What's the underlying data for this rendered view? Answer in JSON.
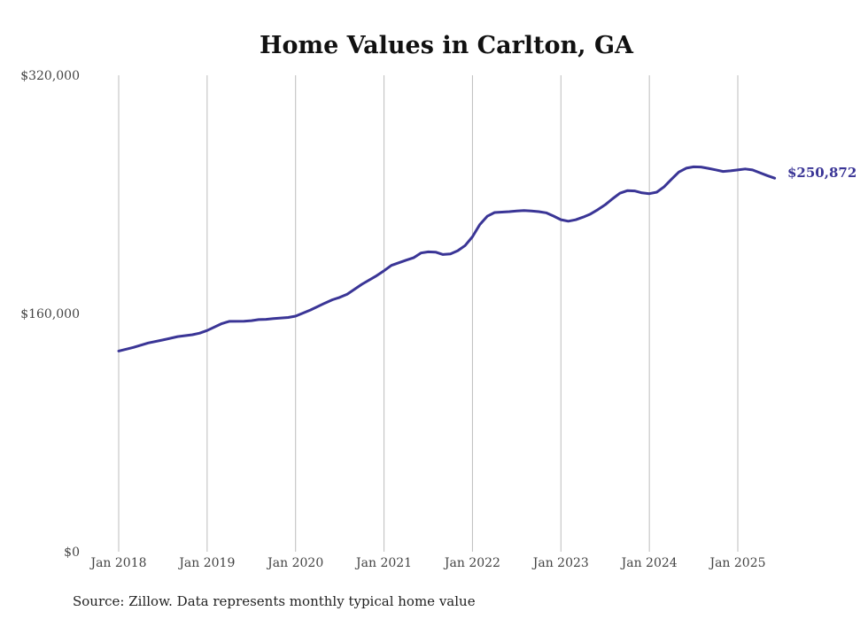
{
  "chart_data": {
    "type": "line",
    "title": "Home Values in Carlton, GA",
    "source_note": "Source: Zillow. Data represents monthly typical home value",
    "ylim": [
      0,
      320000
    ],
    "y_ticks": [
      {
        "value": 320000,
        "label": "$320,000"
      },
      {
        "value": 160000,
        "label": "$160,000"
      },
      {
        "value": 0,
        "label": "$0"
      }
    ],
    "x_ticks": [
      {
        "value": 2018,
        "label": "Jan 2018"
      },
      {
        "value": 2019,
        "label": "Jan 2019"
      },
      {
        "value": 2020,
        "label": "Jan 2020"
      },
      {
        "value": 2021,
        "label": "Jan 2021"
      },
      {
        "value": 2022,
        "label": "Jan 2022"
      },
      {
        "value": 2023,
        "label": "Jan 2023"
      },
      {
        "value": 2024,
        "label": "Jan 2024"
      },
      {
        "value": 2025,
        "label": "Jan 2025"
      }
    ],
    "xlim": [
      2018,
      2025.4167
    ],
    "grid": "vertical",
    "line_color": "#3a3596",
    "end_label": "$250,872",
    "series": [
      {
        "points": [
          [
            2018.0,
            134800
          ],
          [
            2018.1667,
            137200
          ],
          [
            2018.3333,
            140200
          ],
          [
            2018.5,
            142200
          ],
          [
            2018.6667,
            144500
          ],
          [
            2018.8333,
            145700
          ],
          [
            2018.9167,
            146800
          ],
          [
            2019.0,
            148600
          ],
          [
            2019.1667,
            153200
          ],
          [
            2019.25,
            154700
          ],
          [
            2019.4167,
            154800
          ],
          [
            2019.5,
            155200
          ],
          [
            2019.5833,
            155900
          ],
          [
            2019.6667,
            156100
          ],
          [
            2019.75,
            156600
          ],
          [
            2019.9167,
            157300
          ],
          [
            2020.0,
            158200
          ],
          [
            2020.1667,
            162300
          ],
          [
            2020.3333,
            167000
          ],
          [
            2020.4167,
            169200
          ],
          [
            2020.5,
            170800
          ],
          [
            2020.5833,
            172900
          ],
          [
            2020.75,
            179600
          ],
          [
            2020.9167,
            185400
          ],
          [
            2021.0,
            188700
          ],
          [
            2021.0833,
            192300
          ],
          [
            2021.25,
            195800
          ],
          [
            2021.3333,
            197400
          ],
          [
            2021.4167,
            200600
          ],
          [
            2021.5,
            201400
          ],
          [
            2021.5833,
            201200
          ],
          [
            2021.6667,
            199600
          ],
          [
            2021.75,
            200000
          ],
          [
            2021.8333,
            202200
          ],
          [
            2021.9167,
            205600
          ],
          [
            2022.0,
            211500
          ],
          [
            2022.0833,
            219700
          ],
          [
            2022.1667,
            225300
          ],
          [
            2022.25,
            227800
          ],
          [
            2022.3333,
            228100
          ],
          [
            2022.4167,
            228400
          ],
          [
            2022.5,
            228800
          ],
          [
            2022.5833,
            229200
          ],
          [
            2022.6667,
            228900
          ],
          [
            2022.75,
            228400
          ],
          [
            2022.8333,
            227600
          ],
          [
            2022.9167,
            225400
          ],
          [
            2023.0,
            223000
          ],
          [
            2023.0833,
            222000
          ],
          [
            2023.1667,
            222900
          ],
          [
            2023.25,
            224700
          ],
          [
            2023.3333,
            226800
          ],
          [
            2023.4167,
            229700
          ],
          [
            2023.5,
            233000
          ],
          [
            2023.5833,
            237000
          ],
          [
            2023.6667,
            240800
          ],
          [
            2023.75,
            242500
          ],
          [
            2023.8333,
            242300
          ],
          [
            2023.9167,
            241000
          ],
          [
            2024.0,
            240500
          ],
          [
            2024.0833,
            241500
          ],
          [
            2024.1667,
            245100
          ],
          [
            2024.25,
            250200
          ],
          [
            2024.3333,
            255000
          ],
          [
            2024.4167,
            257600
          ],
          [
            2024.5,
            258500
          ],
          [
            2024.5833,
            258400
          ],
          [
            2024.6667,
            257500
          ],
          [
            2024.75,
            256500
          ],
          [
            2024.8333,
            255400
          ],
          [
            2024.9167,
            255800
          ],
          [
            2025.0,
            256400
          ],
          [
            2025.0833,
            257100
          ],
          [
            2025.1667,
            256400
          ],
          [
            2025.25,
            254500
          ],
          [
            2025.3333,
            252600
          ],
          [
            2025.4167,
            250872
          ]
        ]
      }
    ]
  }
}
